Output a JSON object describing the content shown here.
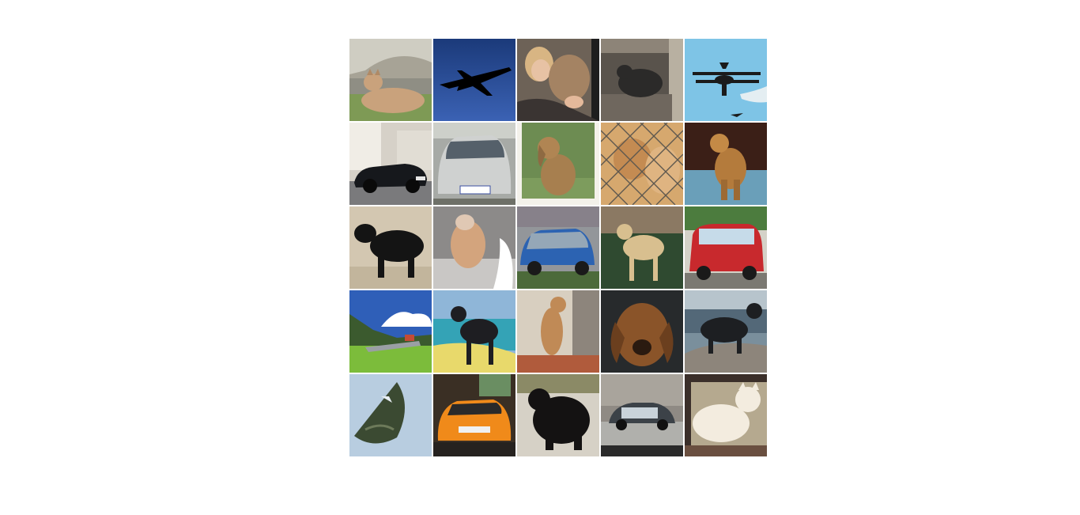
{
  "image_grid": {
    "rows": 5,
    "columns": 5,
    "tiles": [
      {
        "subject": "cougar"
      },
      {
        "subject": "airplane"
      },
      {
        "subject": "woman-with-lynx"
      },
      {
        "subject": "dark-animal-in-doorway"
      },
      {
        "subject": "biplane"
      },
      {
        "subject": "black-convertible-car"
      },
      {
        "subject": "silver-hatchback-car"
      },
      {
        "subject": "sitting-dog"
      },
      {
        "subject": "cat-behind-fence"
      },
      {
        "subject": "brown-dog"
      },
      {
        "subject": "black-dog"
      },
      {
        "subject": "fluffy-cat"
      },
      {
        "subject": "blue-smart-car"
      },
      {
        "subject": "tan-dog"
      },
      {
        "subject": "red-van"
      },
      {
        "subject": "plane-on-grass"
      },
      {
        "subject": "dog-on-beach"
      },
      {
        "subject": "cat-climbing"
      },
      {
        "subject": "bloodhound"
      },
      {
        "subject": "dog-on-rock"
      },
      {
        "subject": "delta-wing-jet"
      },
      {
        "subject": "orange-sports-car"
      },
      {
        "subject": "black-fluffy-dog"
      },
      {
        "subject": "silver-smart-car"
      },
      {
        "subject": "white-cat"
      }
    ]
  }
}
